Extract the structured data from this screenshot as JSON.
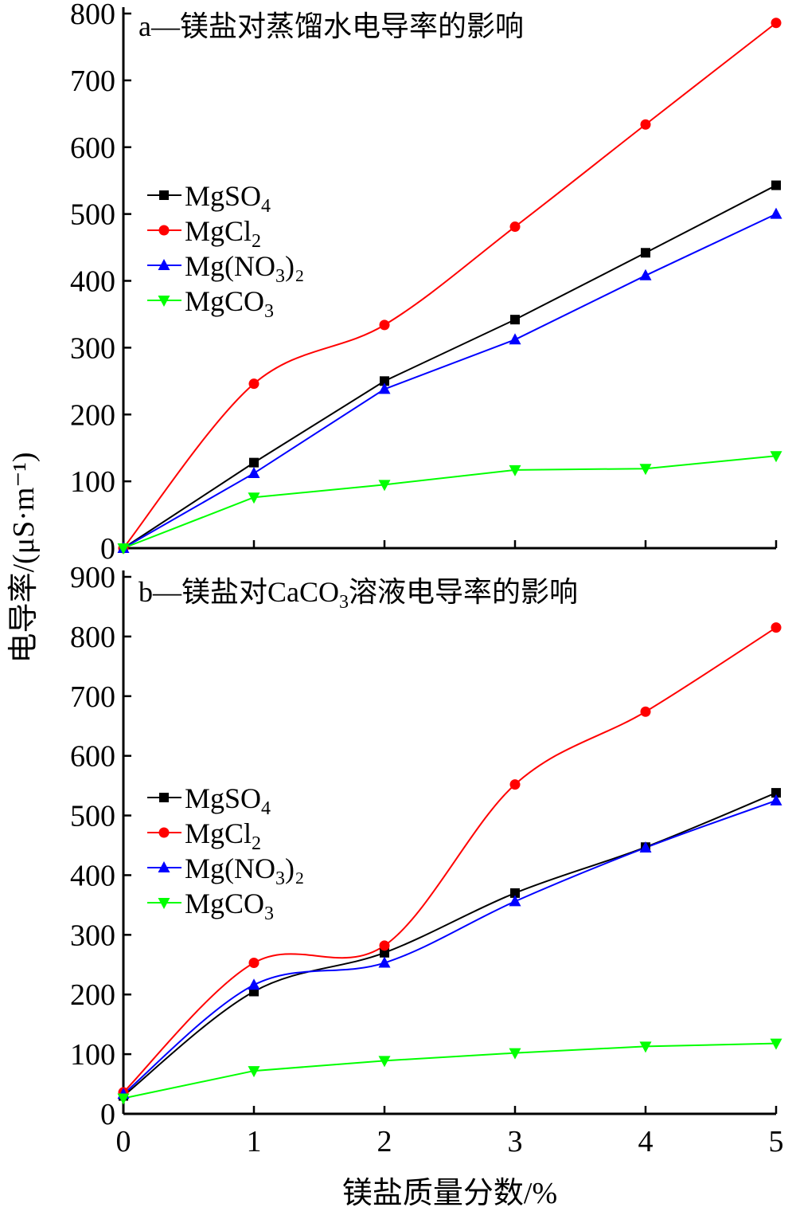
{
  "figure": {
    "xlabel": "镁盐质量分数/%",
    "ylabel": "电导率/(μS·m⁻¹)"
  },
  "legend": [
    {
      "label": "MgSO",
      "sub": "4",
      "suffix": "",
      "color": "#000000",
      "marker": "square"
    },
    {
      "label": "MgCl",
      "sub": "2",
      "suffix": "",
      "color": "#ff0000",
      "marker": "circle"
    },
    {
      "label": "Mg(NO",
      "sub": "3",
      "suffix": ")₂",
      "color": "#0000ff",
      "marker": "triangle-up"
    },
    {
      "label": "MgCO",
      "sub": "3",
      "suffix": "",
      "color": "#00ff00",
      "marker": "triangle-down"
    }
  ],
  "chart_data": [
    {
      "type": "line",
      "title": "a—镁盐对蒸馏水电导率的影响",
      "xlabel": "镁盐质量分数/%",
      "ylabel": "电导率/(μS·m⁻¹)",
      "x": [
        0,
        1,
        2,
        3,
        4,
        5
      ],
      "xlim": [
        0,
        5
      ],
      "ylim": [
        0,
        800
      ],
      "yticks": [
        0,
        100,
        200,
        300,
        400,
        500,
        600,
        700,
        800
      ],
      "series": [
        {
          "name": "MgSO4",
          "color": "#000000",
          "marker": "square",
          "values": [
            0,
            128,
            250,
            342,
            442,
            543
          ]
        },
        {
          "name": "MgCl2",
          "color": "#ff0000",
          "marker": "circle",
          "values": [
            0,
            246,
            334,
            481,
            634,
            786
          ]
        },
        {
          "name": "Mg(NO3)2",
          "color": "#0000ff",
          "marker": "triangle-up",
          "values": [
            0,
            112,
            238,
            312,
            408,
            500
          ]
        },
        {
          "name": "MgCO3",
          "color": "#00ff00",
          "marker": "triangle-down",
          "values": [
            0,
            76,
            95,
            117,
            119,
            138
          ]
        }
      ]
    },
    {
      "type": "line",
      "title": "b—镁盐对CaCO",
      "title_sub": "3",
      "title_rest": "溶液电导率的影响",
      "xlabel": "镁盐质量分数/%",
      "ylabel": "电导率/(μS·m⁻¹)",
      "x": [
        0,
        1,
        2,
        3,
        4,
        5
      ],
      "xlim": [
        0,
        5
      ],
      "ylim": [
        0,
        900
      ],
      "xticks": [
        "0",
        "1",
        "2",
        "3",
        "4",
        "5"
      ],
      "yticks": [
        0,
        100,
        200,
        300,
        400,
        500,
        600,
        700,
        800,
        900
      ],
      "series": [
        {
          "name": "MgSO4",
          "color": "#000000",
          "marker": "square",
          "values": [
            30,
            205,
            270,
            370,
            447,
            538
          ]
        },
        {
          "name": "MgCl2",
          "color": "#ff0000",
          "marker": "circle",
          "values": [
            36,
            253,
            282,
            552,
            674,
            815
          ]
        },
        {
          "name": "Mg(NO3)2",
          "color": "#0000ff",
          "marker": "triangle-up",
          "values": [
            33,
            216,
            253,
            356,
            446,
            525
          ]
        },
        {
          "name": "MgCO3",
          "color": "#00ff00",
          "marker": "triangle-down",
          "values": [
            26,
            72,
            89,
            102,
            113,
            118
          ]
        }
      ]
    }
  ]
}
